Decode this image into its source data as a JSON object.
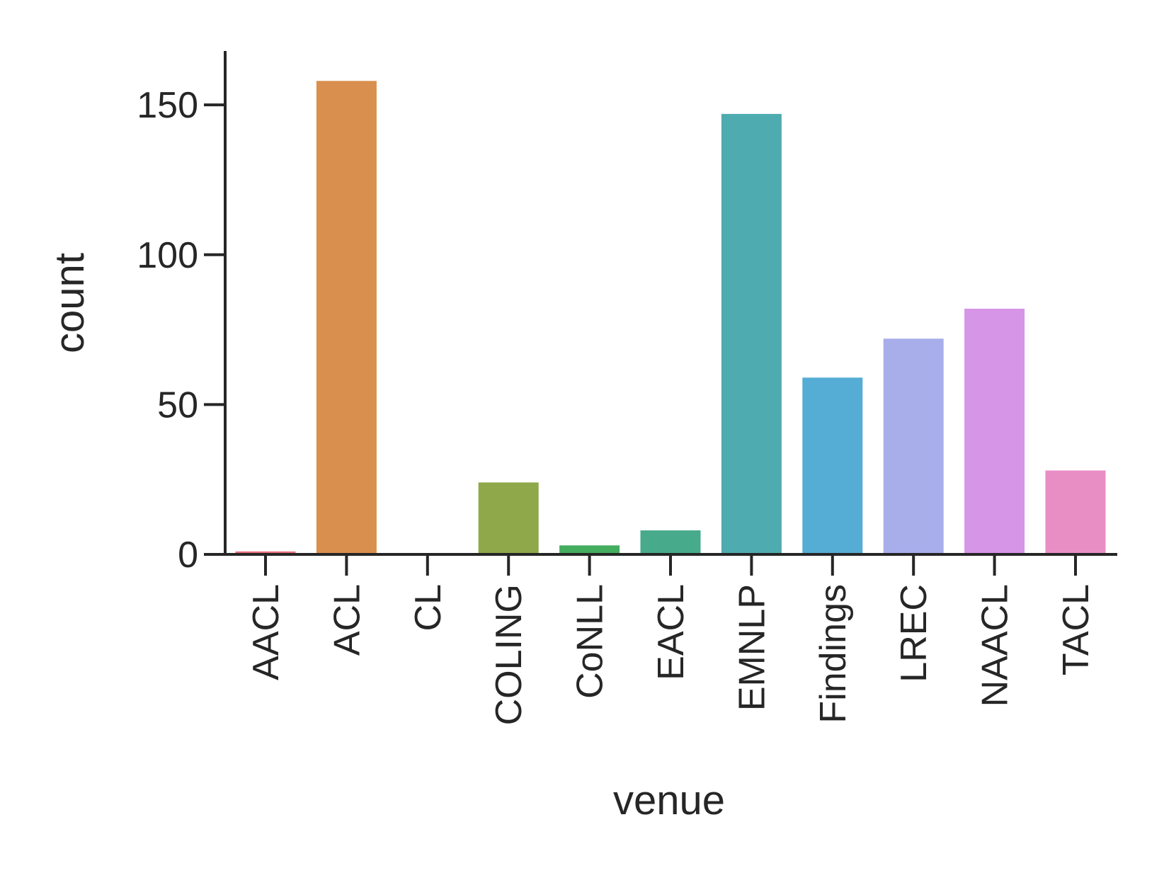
{
  "chart_data": {
    "type": "bar",
    "categories": [
      "AACL",
      "ACL",
      "CL",
      "COLING",
      "CoNLL",
      "EACL",
      "EMNLP",
      "Findings",
      "LREC",
      "NAACL",
      "TACL"
    ],
    "values": [
      1,
      158,
      0,
      24,
      3,
      8,
      147,
      59,
      72,
      82,
      28
    ],
    "colors": [
      "#e87080",
      "#d98f4d",
      "#b8a034",
      "#8ea84a",
      "#44ad5e",
      "#47ab8b",
      "#4eacb0",
      "#55acd4",
      "#a8aeea",
      "#d695e6",
      "#e98ec5"
    ],
    "title": "",
    "xlabel": "venue",
    "ylabel": "count",
    "ylim": [
      0,
      168
    ],
    "yticks": [
      0,
      50,
      100,
      150
    ],
    "grid": false,
    "legend": "none"
  }
}
